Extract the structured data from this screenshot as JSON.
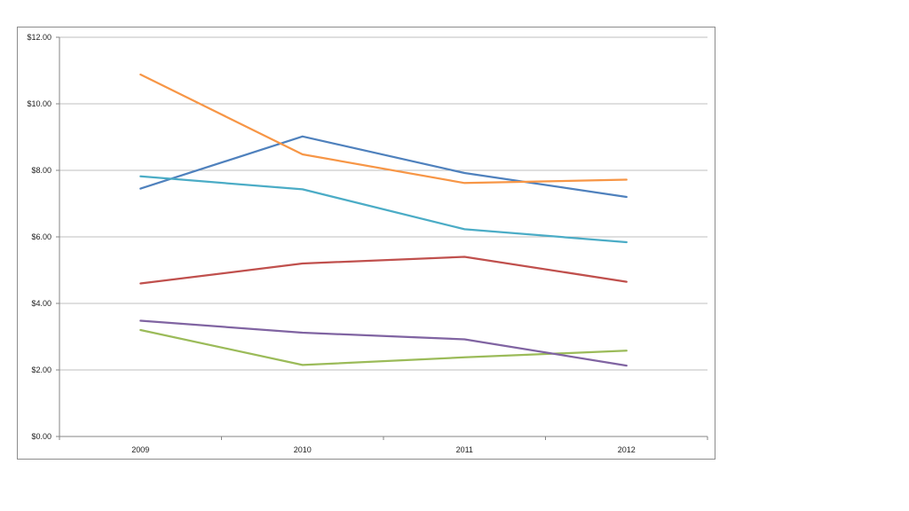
{
  "chart_data": {
    "type": "line",
    "title": "",
    "xlabel": "",
    "ylabel": "",
    "categories": [
      "2009",
      "2010",
      "2011",
      "2012"
    ],
    "ylim": [
      0,
      12
    ],
    "yticks": [
      "$0.00",
      "$2.00",
      "$4.00",
      "$6.00",
      "$8.00",
      "$10.00",
      "$12.00"
    ],
    "grid": true,
    "legend": "none",
    "series": [
      {
        "color": "#4f81bd",
        "values": [
          7.45,
          9.02,
          7.92,
          7.2
        ]
      },
      {
        "color": "#c0504d",
        "values": [
          4.6,
          5.2,
          5.4,
          4.65
        ]
      },
      {
        "color": "#9bbb59",
        "values": [
          3.2,
          2.15,
          2.38,
          2.58
        ]
      },
      {
        "color": "#8064a2",
        "values": [
          3.48,
          3.12,
          2.92,
          2.13
        ]
      },
      {
        "color": "#4bacc6",
        "values": [
          7.82,
          7.43,
          6.23,
          5.84
        ]
      },
      {
        "color": "#f79646",
        "values": [
          10.88,
          8.48,
          7.62,
          7.72
        ]
      }
    ]
  }
}
